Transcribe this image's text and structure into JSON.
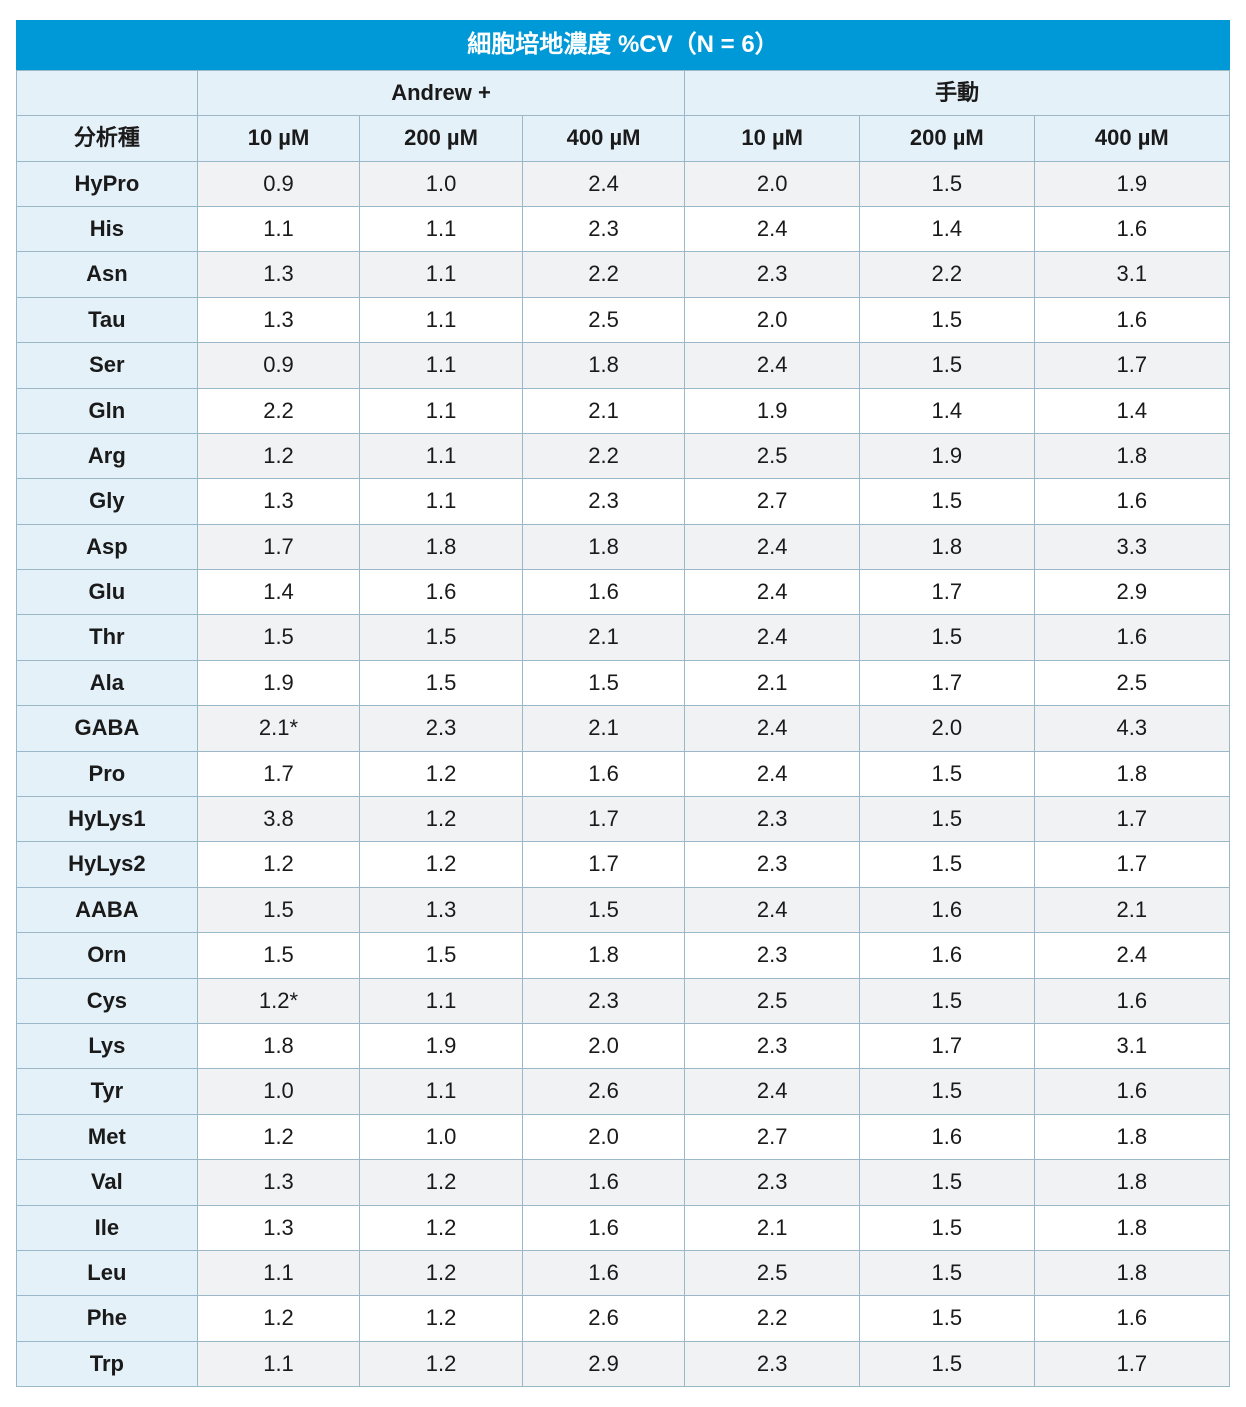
{
  "table": {
    "type": "table",
    "title": "細胞培地濃度 %CV（N = 6）",
    "analyte_header": "分析種",
    "groups": [
      {
        "label": "Andrew +",
        "span": 3
      },
      {
        "label": "手動",
        "span": 3
      }
    ],
    "columns": [
      "10 µM",
      "200 µM",
      "400 µM",
      "10 µM",
      "200 µM",
      "400 µM"
    ],
    "col_widths_pct": [
      14.9,
      13.4,
      13.4,
      13.4,
      14.4,
      14.4,
      16.1
    ],
    "rows": [
      {
        "analyte": "HyPro",
        "values": [
          "0.9",
          "1.0",
          "2.4",
          "2.0",
          "1.5",
          "1.9"
        ]
      },
      {
        "analyte": "His",
        "values": [
          "1.1",
          "1.1",
          "2.3",
          "2.4",
          "1.4",
          "1.6"
        ]
      },
      {
        "analyte": "Asn",
        "values": [
          "1.3",
          "1.1",
          "2.2",
          "2.3",
          "2.2",
          "3.1"
        ]
      },
      {
        "analyte": "Tau",
        "values": [
          "1.3",
          "1.1",
          "2.5",
          "2.0",
          "1.5",
          "1.6"
        ]
      },
      {
        "analyte": "Ser",
        "values": [
          "0.9",
          "1.1",
          "1.8",
          "2.4",
          "1.5",
          "1.7"
        ]
      },
      {
        "analyte": "Gln",
        "values": [
          "2.2",
          "1.1",
          "2.1",
          "1.9",
          "1.4",
          "1.4"
        ]
      },
      {
        "analyte": "Arg",
        "values": [
          "1.2",
          "1.1",
          "2.2",
          "2.5",
          "1.9",
          "1.8"
        ]
      },
      {
        "analyte": "Gly",
        "values": [
          "1.3",
          "1.1",
          "2.3",
          "2.7",
          "1.5",
          "1.6"
        ]
      },
      {
        "analyte": "Asp",
        "values": [
          "1.7",
          "1.8",
          "1.8",
          "2.4",
          "1.8",
          "3.3"
        ]
      },
      {
        "analyte": "Glu",
        "values": [
          "1.4",
          "1.6",
          "1.6",
          "2.4",
          "1.7",
          "2.9"
        ]
      },
      {
        "analyte": "Thr",
        "values": [
          "1.5",
          "1.5",
          "2.1",
          "2.4",
          "1.5",
          "1.6"
        ]
      },
      {
        "analyte": "Ala",
        "values": [
          "1.9",
          "1.5",
          "1.5",
          "2.1",
          "1.7",
          "2.5"
        ]
      },
      {
        "analyte": "GABA",
        "values": [
          "2.1*",
          "2.3",
          "2.1",
          "2.4",
          "2.0",
          "4.3"
        ]
      },
      {
        "analyte": "Pro",
        "values": [
          "1.7",
          "1.2",
          "1.6",
          "2.4",
          "1.5",
          "1.8"
        ]
      },
      {
        "analyte": "HyLys1",
        "values": [
          "3.8",
          "1.2",
          "1.7",
          "2.3",
          "1.5",
          "1.7"
        ]
      },
      {
        "analyte": "HyLys2",
        "values": [
          "1.2",
          "1.2",
          "1.7",
          "2.3",
          "1.5",
          "1.7"
        ]
      },
      {
        "analyte": "AABA",
        "values": [
          "1.5",
          "1.3",
          "1.5",
          "2.4",
          "1.6",
          "2.1"
        ]
      },
      {
        "analyte": "Orn",
        "values": [
          "1.5",
          "1.5",
          "1.8",
          "2.3",
          "1.6",
          "2.4"
        ]
      },
      {
        "analyte": "Cys",
        "values": [
          "1.2*",
          "1.1",
          "2.3",
          "2.5",
          "1.5",
          "1.6"
        ]
      },
      {
        "analyte": "Lys",
        "values": [
          "1.8",
          "1.9",
          "2.0",
          "2.3",
          "1.7",
          "3.1"
        ]
      },
      {
        "analyte": "Tyr",
        "values": [
          "1.0",
          "1.1",
          "2.6",
          "2.4",
          "1.5",
          "1.6"
        ]
      },
      {
        "analyte": "Met",
        "values": [
          "1.2",
          "1.0",
          "2.0",
          "2.7",
          "1.6",
          "1.8"
        ]
      },
      {
        "analyte": "Val",
        "values": [
          "1.3",
          "1.2",
          "1.6",
          "2.3",
          "1.5",
          "1.8"
        ]
      },
      {
        "analyte": "Ile",
        "values": [
          "1.3",
          "1.2",
          "1.6",
          "2.1",
          "1.5",
          "1.8"
        ]
      },
      {
        "analyte": "Leu",
        "values": [
          "1.1",
          "1.2",
          "1.6",
          "2.5",
          "1.5",
          "1.8"
        ]
      },
      {
        "analyte": "Phe",
        "values": [
          "1.2",
          "1.2",
          "2.6",
          "2.2",
          "1.5",
          "1.6"
        ]
      },
      {
        "analyte": "Trp",
        "values": [
          "1.1",
          "1.2",
          "2.9",
          "2.3",
          "1.5",
          "1.7"
        ]
      }
    ],
    "colors": {
      "title_bg": "#0099d8",
      "title_fg": "#ffffff",
      "header_bg": "#e5f1f8",
      "analyte_bg": "#e5f1f8",
      "row_even_bg": "#ffffff",
      "row_odd_bg": "#f1f2f3",
      "border": "#9bb8c9",
      "text": "#1a1a1a"
    },
    "title_fontsize": 24,
    "cell_fontsize": 22
  }
}
